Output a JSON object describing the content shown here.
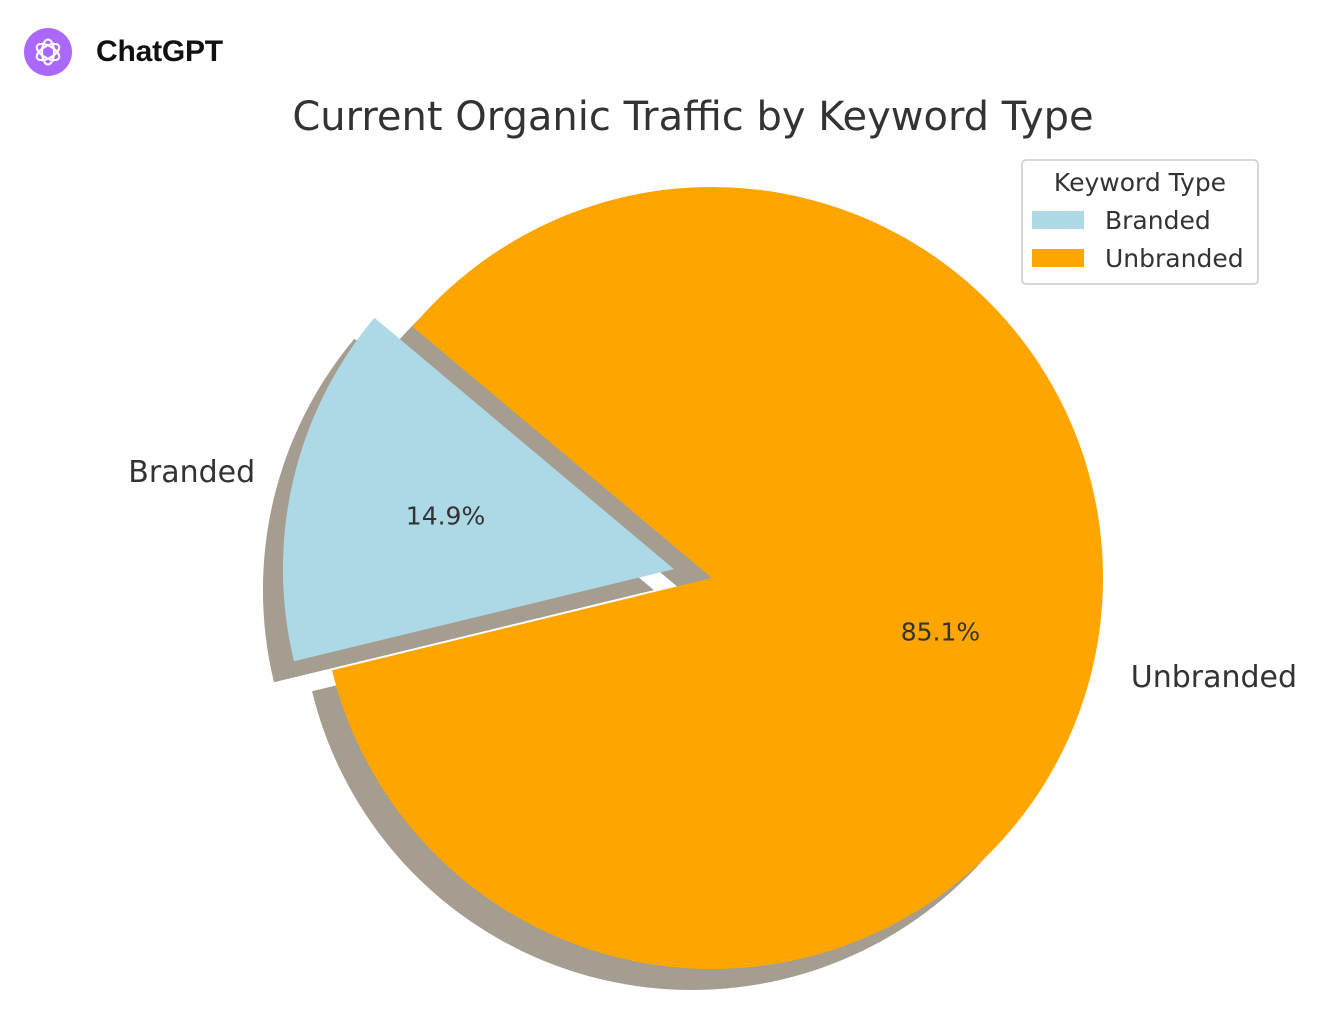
{
  "app": {
    "name": "ChatGPT",
    "logo_icon": "openai-logo-icon",
    "logo_color": "#ab68ff"
  },
  "chart_data": {
    "type": "pie",
    "title": "Current Organic Traffic by Keyword Type",
    "categories": [
      "Branded",
      "Unbranded"
    ],
    "values": [
      14.9,
      85.1
    ],
    "value_labels": [
      "14.9%",
      "85.1%"
    ],
    "colors": [
      "#add8e6",
      "#ffa500"
    ],
    "exploded": [
      "Branded"
    ],
    "shadow": true,
    "legend": {
      "title": "Keyword Type",
      "placement": "top-right",
      "entries": [
        "Branded",
        "Unbranded"
      ]
    }
  }
}
